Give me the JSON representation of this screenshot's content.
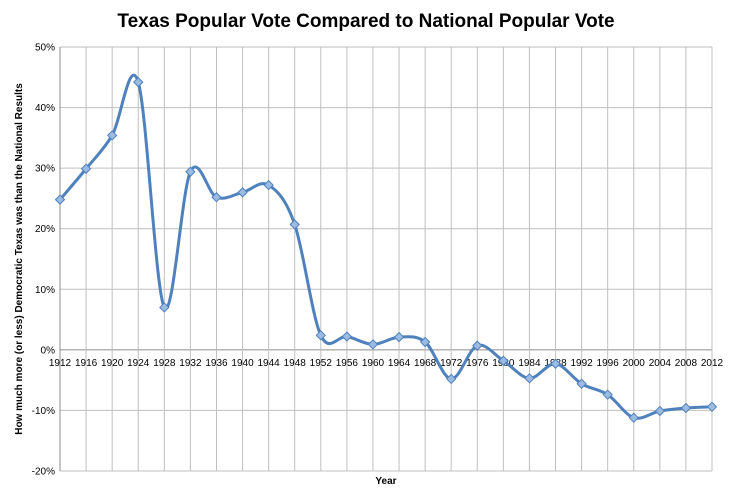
{
  "chart_data": {
    "type": "line",
    "title": "Texas Popular Vote Compared to National Popular Vote",
    "xlabel": "Year",
    "ylabel": "How much more (or less) Democratic Texas was than the National Results",
    "x": [
      1912,
      1916,
      1920,
      1924,
      1928,
      1932,
      1936,
      1940,
      1944,
      1948,
      1952,
      1956,
      1960,
      1964,
      1968,
      1972,
      1976,
      1980,
      1984,
      1988,
      1992,
      1996,
      2000,
      2004,
      2008,
      2012
    ],
    "y": [
      24.8,
      29.9,
      35.4,
      44.2,
      7.0,
      29.4,
      25.2,
      26.0,
      27.2,
      20.7,
      2.4,
      2.2,
      0.9,
      2.1,
      1.3,
      -4.8,
      0.7,
      -1.8,
      -4.7,
      -2.3,
      -5.6,
      -7.4,
      -11.2,
      -10.1,
      -9.6,
      -9.4
    ],
    "xticks": [
      "1912",
      "1916",
      "1920",
      "1924",
      "1928",
      "1932",
      "1936",
      "1940",
      "1944",
      "1948",
      "1952",
      "1956",
      "1960",
      "1964",
      "1968",
      "1972",
      "1976",
      "1980",
      "1984",
      "1988",
      "1992",
      "1996",
      "2000",
      "2004",
      "2008",
      "2012"
    ],
    "yticks": [
      "50%",
      "40%",
      "30%",
      "20%",
      "10%",
      "0%",
      "-10%",
      "-20%"
    ],
    "ytick_values": [
      50,
      40,
      30,
      20,
      10,
      0,
      -10,
      -20
    ],
    "ylim": [
      -20,
      50
    ],
    "grid": true,
    "line_color": "#4f81bd",
    "marker_color": "#9bbbe3",
    "marker": "diamond",
    "smooth": true
  }
}
